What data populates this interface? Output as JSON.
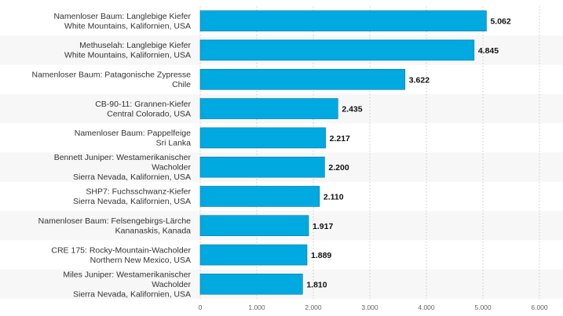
{
  "chart_data": {
    "type": "bar",
    "orientation": "horizontal",
    "categories": [
      [
        "Namenloser Baum: Langlebige Kiefer",
        "White Mountains, Kalifornien, USA"
      ],
      [
        "Methuselah: Langlebige Kiefer",
        "White Mountains, Kalifornien, USA"
      ],
      [
        "Namenloser Baum: Patagonische Zypresse",
        "Chile"
      ],
      [
        "CB-90-11: Grannen-Kiefer",
        "Central Colorado, USA"
      ],
      [
        "Namenloser Baum: Pappelfeige",
        "Sri Lanka"
      ],
      [
        "Bennett Juniper: Westamerikanischer",
        "Wacholder",
        "Sierra Nevada, Kalifornien, USA"
      ],
      [
        "SHP7: Fuchsschwanz-Kiefer",
        "Sierra Nevada, Kalifornien, USA"
      ],
      [
        "Namenloser Baum: Felsengebirgs-Lärche",
        "Kananaskis, Kanada"
      ],
      [
        "CRE 175: Rocky-Mountain-Wacholder",
        "Northern New Mexico, USA"
      ],
      [
        "Miles Juniper: Westamerikanischer",
        "Wacholder",
        "Sierra Nevada, Kalifornien, USA"
      ]
    ],
    "values": [
      5062,
      4845,
      3622,
      2435,
      2217,
      2200,
      2110,
      1917,
      1889,
      1810
    ],
    "value_labels": [
      "5.062",
      "4.845",
      "3.622",
      "2.435",
      "2.217",
      "2.200",
      "2.110",
      "1.917",
      "1.889",
      "1.810"
    ],
    "xlim": [
      0,
      6000
    ],
    "xticks": [
      0,
      1000,
      2000,
      3000,
      4000,
      5000,
      6000
    ],
    "xtick_labels": [
      "0",
      "1.000",
      "2.000",
      "3.000",
      "4.000",
      "5.000",
      "6.000"
    ],
    "title": "",
    "xlabel": "",
    "ylabel": "",
    "grid": true,
    "colors": {
      "bar": "#00a9e0",
      "bar_edge": "#0077a8",
      "grid": "#c8c8c8",
      "band_alt": "#f7f7f7"
    }
  }
}
